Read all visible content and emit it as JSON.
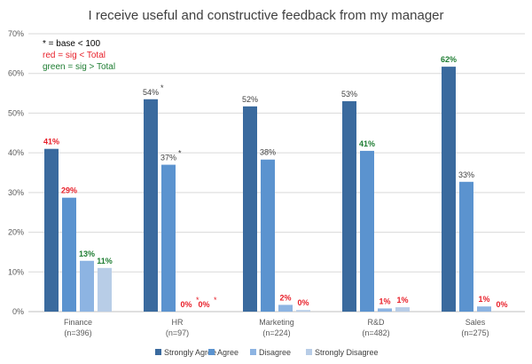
{
  "chart_data": {
    "type": "bar",
    "title": "I receive useful and constructive feedback from my manager",
    "ylim": [
      0,
      70
    ],
    "yticks": [
      "0%",
      "10%",
      "20%",
      "30%",
      "40%",
      "50%",
      "60%",
      "70%"
    ],
    "grid": true,
    "legend_position": "bottom",
    "categories": [
      {
        "name": "Finance",
        "base": "(n=396)"
      },
      {
        "name": "HR",
        "base": "(n=97)"
      },
      {
        "name": "Marketing",
        "base": "(n=224)"
      },
      {
        "name": "R&D",
        "base": "(n=482)"
      },
      {
        "name": "Sales",
        "base": "(n=275)"
      }
    ],
    "series": [
      {
        "name": "Strongly Agree",
        "color": "#3a6a9e",
        "values": [
          41,
          53.5,
          51.7,
          53,
          61.7
        ],
        "labels": [
          "41%",
          "54%",
          "52%",
          "53%",
          "62%"
        ],
        "label_colors": [
          "red",
          "normal",
          "normal",
          "normal",
          "green"
        ],
        "label_stars": [
          false,
          true,
          false,
          false,
          false
        ]
      },
      {
        "name": "Agree",
        "color": "#5b93cf",
        "values": [
          28.7,
          37,
          38.3,
          40.5,
          32.7
        ],
        "labels": [
          "29%",
          "37%",
          "38%",
          "41%",
          "33%"
        ],
        "label_colors": [
          "red",
          "normal",
          "normal",
          "green",
          "normal"
        ],
        "label_stars": [
          false,
          true,
          false,
          false,
          false
        ]
      },
      {
        "name": "Disagree",
        "color": "#8db4e2",
        "values": [
          12.8,
          0,
          1.7,
          0.8,
          1.3
        ],
        "labels": [
          "13%",
          "0%",
          "2%",
          "1%",
          "1%"
        ],
        "label_colors": [
          "green",
          "red",
          "red",
          "red",
          "red"
        ],
        "label_stars": [
          false,
          true,
          false,
          false,
          false
        ]
      },
      {
        "name": "Strongly Disagree",
        "color": "#b8cde7",
        "values": [
          11,
          0,
          0.4,
          1.1,
          0
        ],
        "labels": [
          "11%",
          "0%",
          "0%",
          "1%",
          "0%"
        ],
        "label_colors": [
          "green",
          "red",
          "red",
          "red",
          "red"
        ],
        "label_stars": [
          false,
          true,
          false,
          false,
          false
        ]
      }
    ],
    "annotations": [
      {
        "text": "* = base < 100",
        "color": "black"
      },
      {
        "text": "red = sig < Total",
        "color": "red"
      },
      {
        "text": "green = sig > Total",
        "color": "green"
      }
    ],
    "star_symbol": "*"
  },
  "colors": {
    "red": "#e8202a",
    "green": "#1e7d32",
    "normal": "#404040",
    "grid": "#d9d9d9",
    "axis": "#bfbfbf"
  }
}
